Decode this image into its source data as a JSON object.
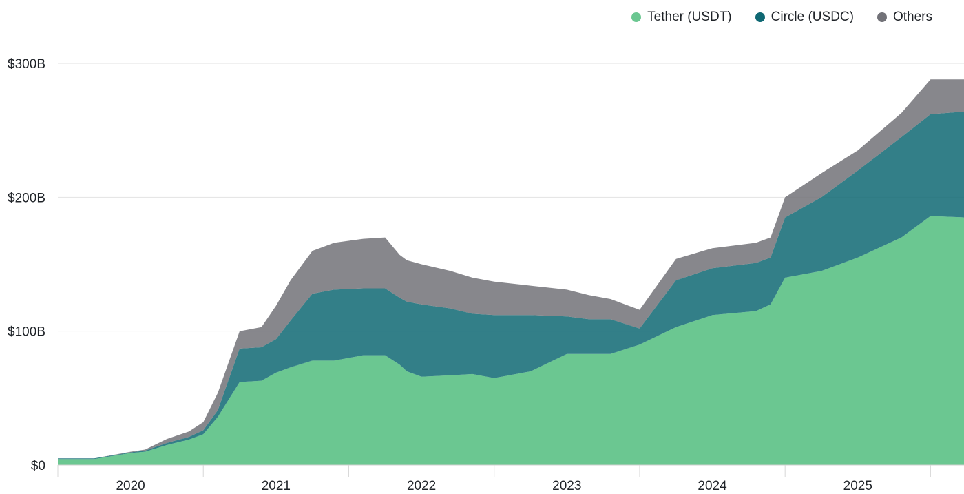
{
  "chart_data": {
    "type": "area",
    "stacked": true,
    "title": "",
    "xlabel": "",
    "ylabel": "",
    "ylim": [
      0,
      300
    ],
    "y_ticks": [
      {
        "value": 0,
        "label": "$0"
      },
      {
        "value": 100,
        "label": "$100B"
      },
      {
        "value": 200,
        "label": "$200B"
      },
      {
        "value": 300,
        "label": "$300B"
      }
    ],
    "x_range": [
      2019.5,
      2025.73
    ],
    "x_ticks": [
      2020,
      2021,
      2022,
      2023,
      2024,
      2025
    ],
    "x_tick_labels": [
      "2020",
      "2021",
      "2022",
      "2023",
      "2024",
      "2025"
    ],
    "year_dividers": [
      2019.5,
      2020.5,
      2021.5,
      2022.5,
      2023.5,
      2024.5,
      2025.5
    ],
    "legend_position": "top-right",
    "x": [
      2019.5,
      2019.75,
      2020.0,
      2020.1,
      2020.25,
      2020.4,
      2020.5,
      2020.6,
      2020.75,
      2020.9,
      2021.0,
      2021.1,
      2021.25,
      2021.4,
      2021.6,
      2021.75,
      2021.85,
      2021.9,
      2022.0,
      2022.2,
      2022.35,
      2022.5,
      2022.75,
      2023.0,
      2023.15,
      2023.3,
      2023.5,
      2023.75,
      2024.0,
      2024.3,
      2024.4,
      2024.5,
      2024.75,
      2025.0,
      2025.3,
      2025.5,
      2025.73
    ],
    "series": [
      {
        "name": "Tether (USDT)",
        "color": "#6bc791",
        "values": [
          4.5,
          4.5,
          9,
          10,
          15,
          19,
          23,
          36,
          62,
          63,
          69,
          73,
          78,
          78,
          82,
          82,
          75,
          70,
          66,
          67,
          68,
          65,
          70,
          83,
          83,
          83,
          90,
          103,
          112,
          115,
          120,
          140,
          145,
          155,
          170,
          186,
          185
        ]
      },
      {
        "name": "Circle (USDC)",
        "color": "#0f6873",
        "values": [
          0.5,
          0.5,
          0.5,
          0.8,
          1.5,
          2,
          3,
          5,
          25,
          25,
          25,
          35,
          50,
          53,
          50,
          50,
          50,
          52,
          54,
          50,
          45,
          47,
          42,
          28,
          26,
          26,
          12,
          35,
          35,
          36,
          35,
          45,
          55,
          65,
          75,
          76,
          79
        ]
      },
      {
        "name": "Others",
        "color": "#727278",
        "values": [
          0,
          0,
          0.5,
          0.8,
          3,
          4,
          6,
          13,
          13,
          15,
          25,
          30,
          32,
          35,
          37,
          38,
          32,
          31,
          30,
          28,
          27,
          25,
          22,
          20,
          18,
          15,
          14,
          16,
          15,
          15,
          15,
          15,
          18,
          15,
          18,
          26,
          24
        ]
      }
    ]
  }
}
